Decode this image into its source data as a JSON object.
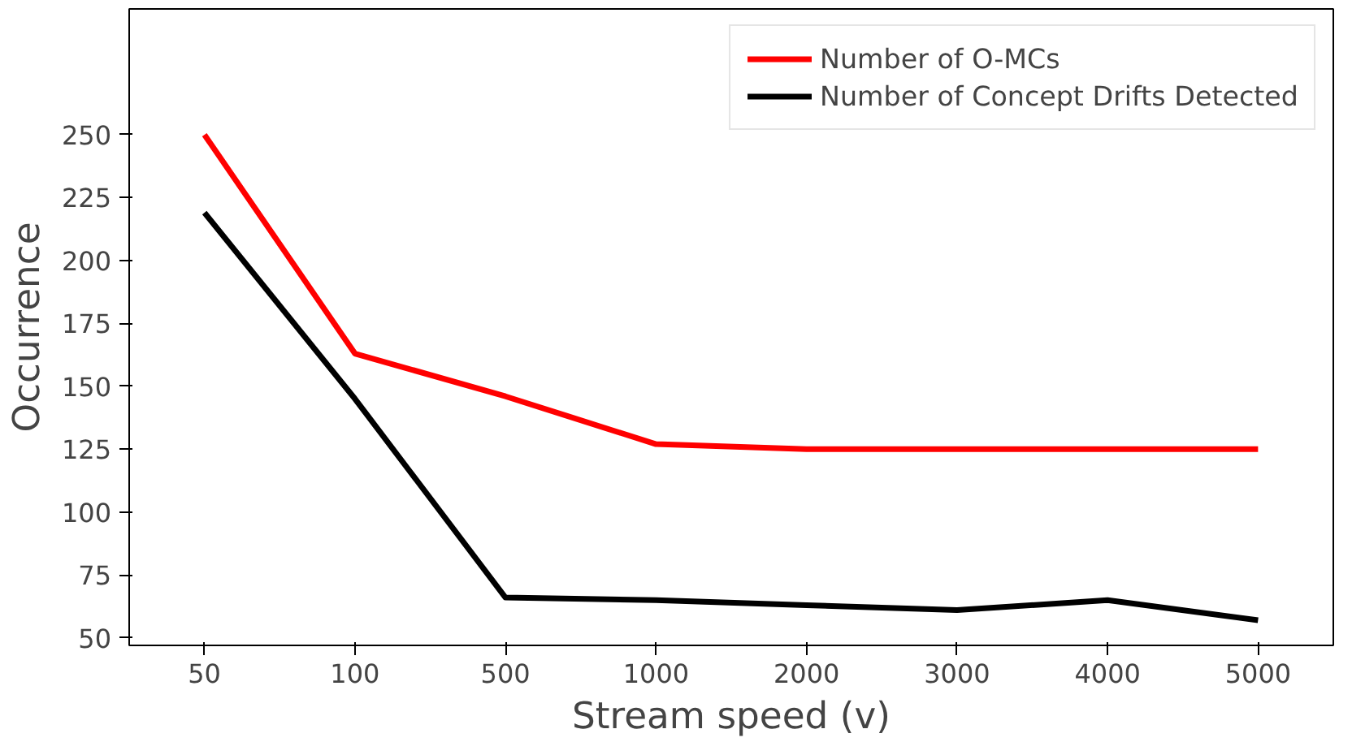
{
  "chart_data": {
    "type": "line",
    "xlabel": "Stream speed (v)",
    "ylabel": "Occurrence",
    "categories": [
      "50",
      "100",
      "500",
      "1000",
      "2000",
      "3000",
      "4000",
      "5000"
    ],
    "series": [
      {
        "name": "Number of O-MCs",
        "color": "#ff0000",
        "values": [
          250,
          163,
          146,
          127,
          125,
          125,
          125,
          125
        ]
      },
      {
        "name": "Number of Concept Drifts Detected",
        "color": "#000000",
        "values": [
          219,
          145,
          66,
          65,
          63,
          61,
          65,
          57
        ]
      }
    ],
    "ylim": [
      47,
      300
    ],
    "yticks": [
      50,
      75,
      100,
      125,
      150,
      175,
      200,
      225,
      250
    ],
    "grid": false,
    "legend": "top right",
    "marker": "none",
    "line_style": "solid"
  }
}
